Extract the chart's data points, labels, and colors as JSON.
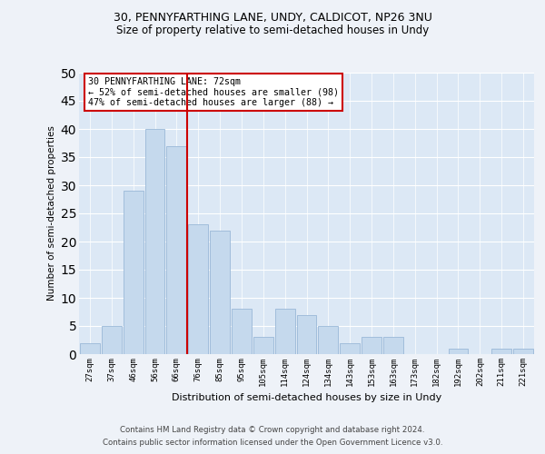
{
  "title1": "30, PENNYFARTHING LANE, UNDY, CALDICOT, NP26 3NU",
  "title2": "Size of property relative to semi-detached houses in Undy",
  "xlabel": "Distribution of semi-detached houses by size in Undy",
  "ylabel": "Number of semi-detached properties",
  "categories": [
    "27sqm",
    "37sqm",
    "46sqm",
    "56sqm",
    "66sqm",
    "76sqm",
    "85sqm",
    "95sqm",
    "105sqm",
    "114sqm",
    "124sqm",
    "134sqm",
    "143sqm",
    "153sqm",
    "163sqm",
    "173sqm",
    "182sqm",
    "192sqm",
    "202sqm",
    "211sqm",
    "221sqm"
  ],
  "values": [
    2,
    5,
    29,
    40,
    37,
    23,
    22,
    8,
    3,
    8,
    7,
    5,
    2,
    3,
    3,
    0,
    0,
    1,
    0,
    1,
    1
  ],
  "bar_color": "#c5d9ed",
  "bar_edge_color": "#9ab8d8",
  "vline_color": "#cc0000",
  "annotation_title": "30 PENNYFARTHING LANE: 72sqm",
  "annotation_line1": "← 52% of semi-detached houses are smaller (98)",
  "annotation_line2": "47% of semi-detached houses are larger (88) →",
  "annotation_box_color": "#ffffff",
  "annotation_border_color": "#cc0000",
  "ylim": [
    0,
    50
  ],
  "yticks": [
    0,
    5,
    10,
    15,
    20,
    25,
    30,
    35,
    40,
    45,
    50
  ],
  "footer1": "Contains HM Land Registry data © Crown copyright and database right 2024.",
  "footer2": "Contains public sector information licensed under the Open Government Licence v3.0.",
  "bg_color": "#eef2f8",
  "plot_bg_color": "#dce8f5",
  "grid_color": "#ffffff",
  "title1_fontsize": 9,
  "title2_fontsize": 8.5,
  "ylabel_text": "Number of semi-detached properties"
}
